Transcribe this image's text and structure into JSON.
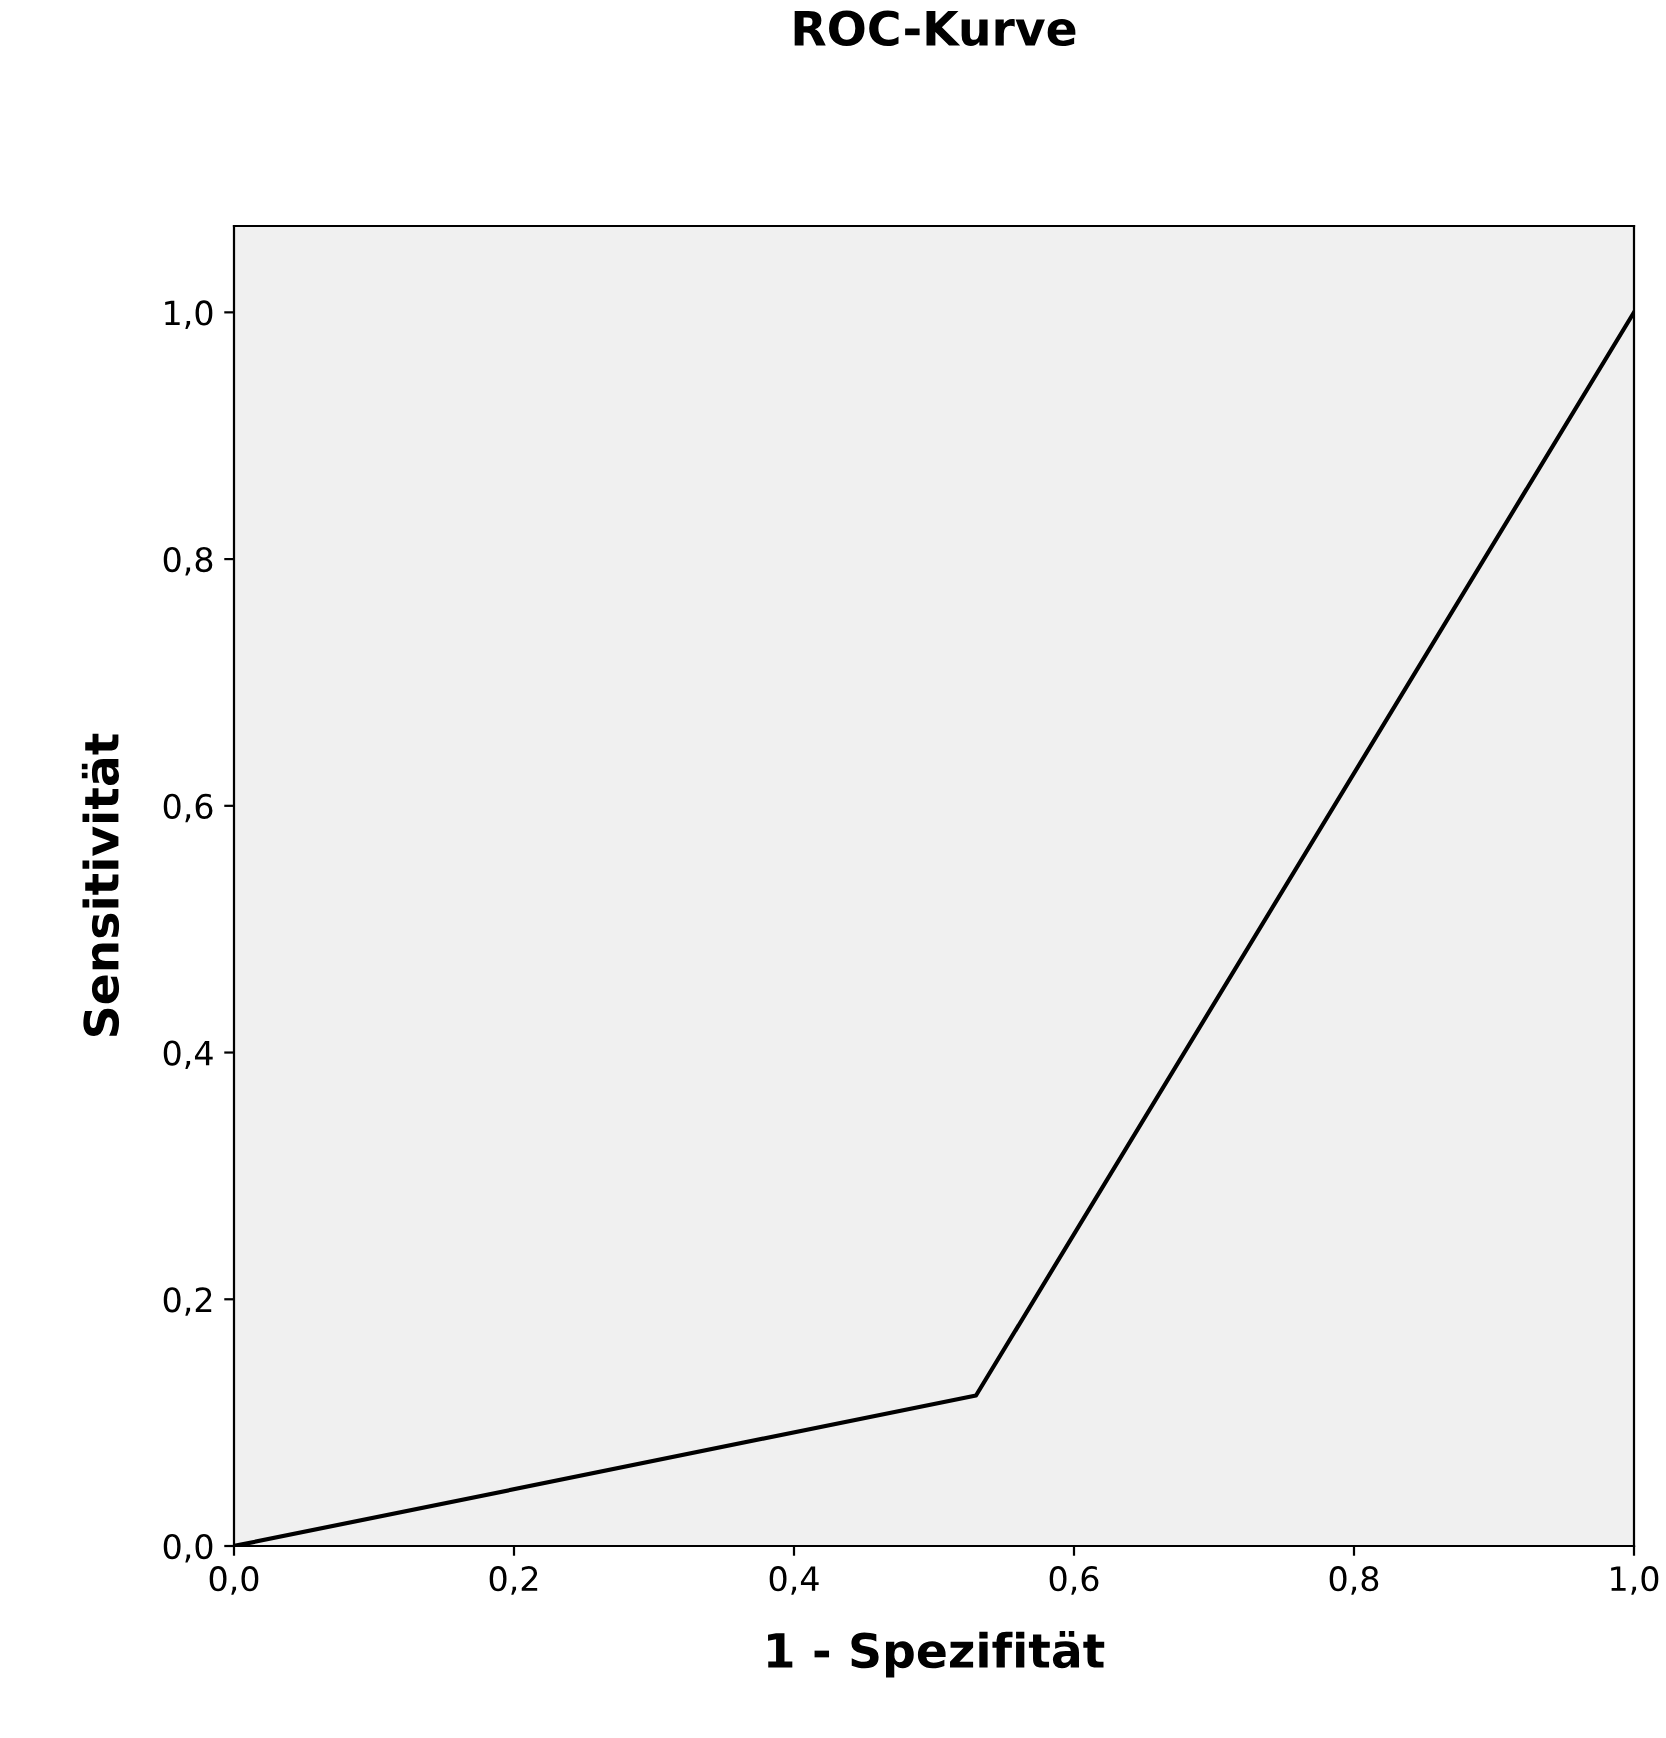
{
  "chart_data": {
    "type": "line",
    "title": "ROC-Kurve",
    "xlabel": "1 - Spezifität",
    "ylabel": "Sensitivität",
    "x": [
      0,
      0.53,
      1.0
    ],
    "series": [
      {
        "color": "#000000",
        "values": [
          0,
          0.122,
          1.0
        ]
      }
    ],
    "xlim": [
      0,
      1
    ],
    "ylim": [
      0,
      1.07
    ],
    "xticks": [
      {
        "value": 0,
        "label": "0,0"
      },
      {
        "value": 0.2,
        "label": "0,2"
      },
      {
        "value": 0.4,
        "label": "0,4"
      },
      {
        "value": 0.6,
        "label": "0,6"
      },
      {
        "value": 0.8,
        "label": "0,8"
      },
      {
        "value": 1.0,
        "label": "1,0"
      }
    ],
    "yticks": [
      {
        "value": 0,
        "label": "0,0"
      },
      {
        "value": 0.2,
        "label": "0,2"
      },
      {
        "value": 0.4,
        "label": "0,4"
      },
      {
        "value": 0.6,
        "label": "0,6"
      },
      {
        "value": 0.8,
        "label": "0,8"
      },
      {
        "value": 1.0,
        "label": "1,0"
      }
    ],
    "grid": false,
    "legend": false,
    "marker": "none",
    "line_style": "solid"
  }
}
